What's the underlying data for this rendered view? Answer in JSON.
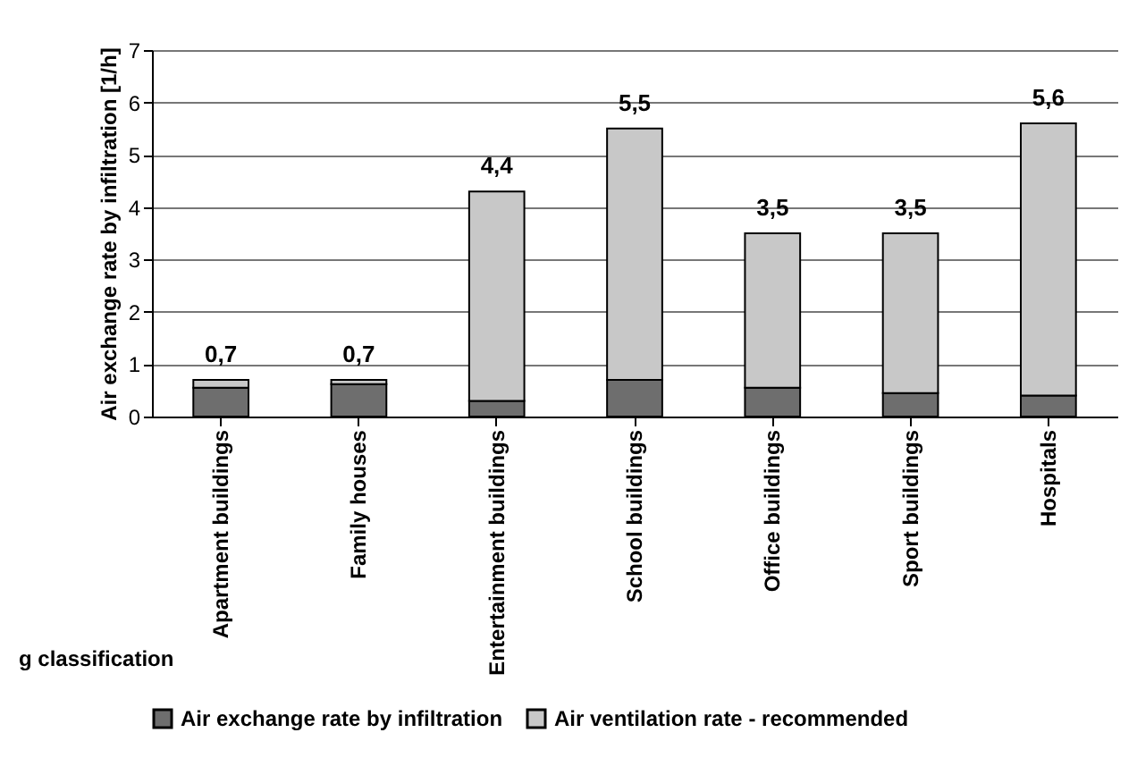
{
  "chart_data": {
    "type": "bar",
    "stacked": true,
    "categories": [
      "Apartment buildings",
      "Family houses",
      "Entertainment buildings",
      "School buildings",
      "Office buildings",
      "Sport buildings",
      "Hospitals"
    ],
    "series": [
      {
        "name": "Air exchange rate by infiltration",
        "color": "#6e6e6e",
        "values": [
          0.55,
          0.62,
          0.3,
          0.7,
          0.55,
          0.45,
          0.4
        ]
      },
      {
        "name": "Air ventilation rate - recommended",
        "color": "#c8c8c8",
        "values": [
          0.15,
          0.08,
          4.0,
          4.8,
          2.95,
          3.05,
          5.2
        ]
      }
    ],
    "totals": [
      "0,7",
      "0,7",
      "4,4",
      "5,5",
      "3,5",
      "3,5",
      "5,6"
    ],
    "xlabel": "g classification",
    "ylabel": "Air exchange rate by infiltration [1/h]",
    "ylim": [
      0,
      7
    ],
    "yticks": [
      0,
      1,
      2,
      3,
      4,
      5,
      6,
      7
    ],
    "grid": "y",
    "legend": "bottom"
  }
}
